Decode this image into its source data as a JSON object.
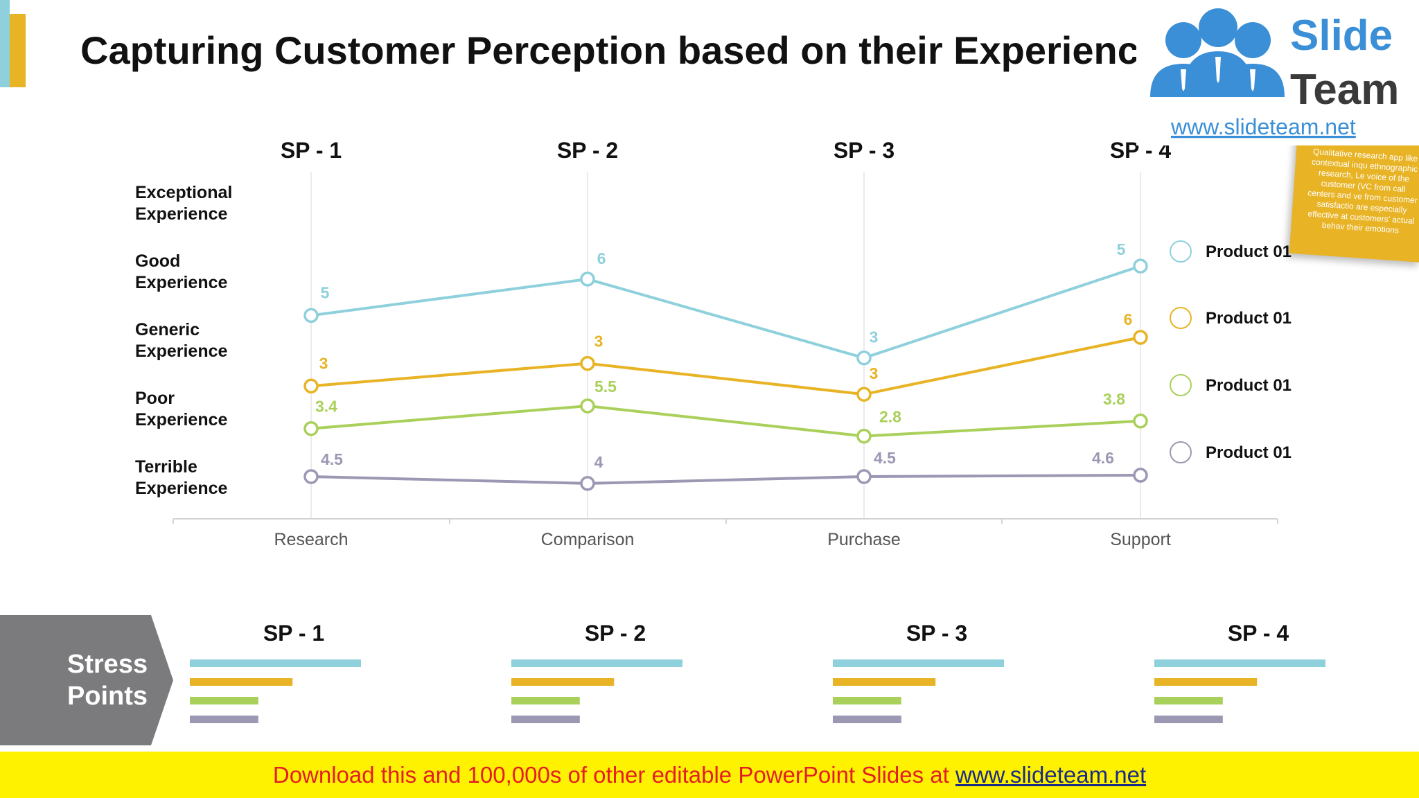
{
  "title": "Capturing Customer Perception based on their Experience",
  "logo": {
    "word1": "Slide",
    "word2": "Team",
    "url": "www.slideteam.net"
  },
  "sticky_note_text": "Qualitative research app like contextual inqu ethnographic research, Le voice of the customer (VC from call centers and ve from customer satisfactio are especially effective at customers' actual behav their emotions",
  "chart_data": {
    "type": "line",
    "categories": [
      "Research",
      "Comparison",
      "Purchase",
      "Support"
    ],
    "stage_labels": [
      "SP - 1",
      "SP - 2",
      "SP - 3",
      "SP - 4"
    ],
    "y_levels": [
      "Terrible Experience",
      "Poor Experience",
      "Generic Experience",
      "Good Experience",
      "Exceptional Experience"
    ],
    "ylim": [
      0,
      5
    ],
    "series": [
      {
        "name": "Product 01",
        "color": "#8ed0dc",
        "values": [
          3.35,
          3.88,
          2.73,
          4.07
        ],
        "labels": [
          "5",
          "6",
          "3",
          "5"
        ]
      },
      {
        "name": "Product 01",
        "color": "#e8b325",
        "values": [
          2.32,
          2.65,
          2.2,
          3.03
        ],
        "labels": [
          "3",
          "3",
          "3",
          "6"
        ]
      },
      {
        "name": "Product 01",
        "color": "#a9d05a",
        "values": [
          1.7,
          2.03,
          1.59,
          1.81
        ],
        "labels": [
          "3.4",
          "5.5",
          "2.8",
          "3.8"
        ]
      },
      {
        "name": "Product 01",
        "color": "#9a98b3",
        "values": [
          1.0,
          0.9,
          1.0,
          1.02
        ],
        "labels": [
          "4.5",
          "4",
          "4.5",
          "4.6"
        ]
      }
    ]
  },
  "stress_points": {
    "label_line1": "Stress",
    "label_line2": "Points",
    "groups": [
      {
        "label": "SP - 1",
        "bars": [
          1.0,
          0.6,
          0.4,
          0.4
        ]
      },
      {
        "label": "SP - 2",
        "bars": [
          1.0,
          0.6,
          0.4,
          0.4
        ]
      },
      {
        "label": "SP - 3",
        "bars": [
          1.0,
          0.6,
          0.4,
          0.4
        ]
      },
      {
        "label": "SP - 4",
        "bars": [
          1.0,
          0.6,
          0.4,
          0.4
        ]
      }
    ],
    "colors": [
      "#8ed0dc",
      "#e8b325",
      "#a9d05a",
      "#9a98b3"
    ]
  },
  "banner": {
    "text": "Download this and 100,000s of other editable PowerPoint Slides at ",
    "link": "www.slideteam.net"
  }
}
